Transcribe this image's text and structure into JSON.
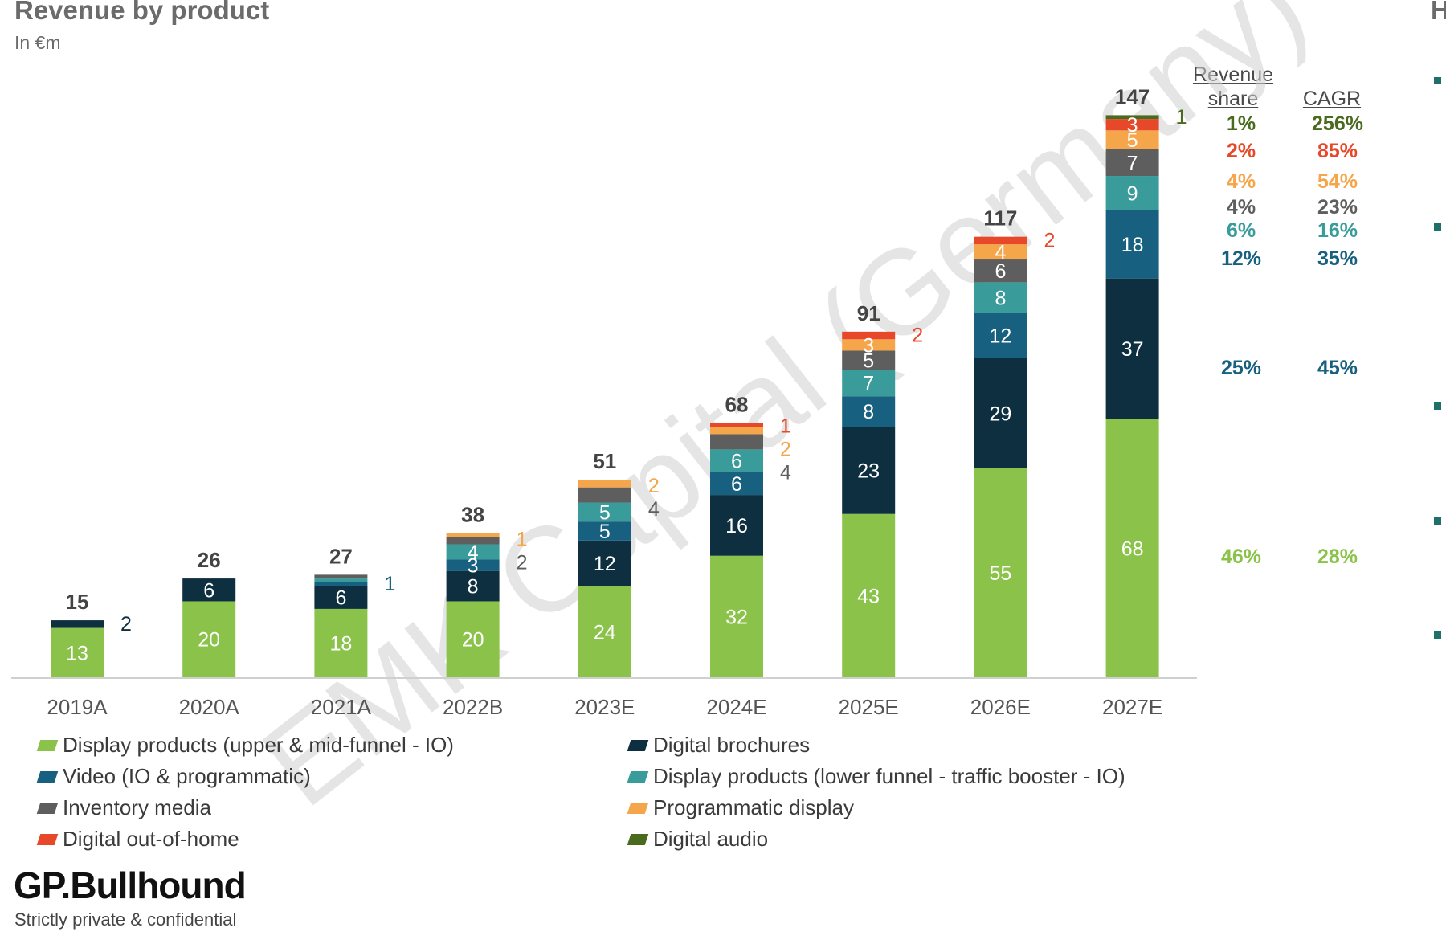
{
  "title": "Revenue by product",
  "subtitle": "In €m",
  "right_edge_text": "H",
  "columns": {
    "revenue_share": "Revenue share",
    "cagr": "CAGR"
  },
  "watermark": "EMK Capital (Germany)",
  "brand": "GP.Bullhound",
  "footer": "Strictly private & confidential",
  "chart_data": {
    "type": "bar",
    "stacked": true,
    "title": "Revenue by product",
    "ylabel": "In €m",
    "categories": [
      "2019A",
      "2020A",
      "2021A",
      "2022B",
      "2023E",
      "2024E",
      "2025E",
      "2026E",
      "2027E"
    ],
    "totals": [
      15,
      26,
      27,
      38,
      51,
      68,
      91,
      117,
      147
    ],
    "series": [
      {
        "name": "Display products (upper & mid-funnel - IO)",
        "color": "#8bc34a",
        "values": [
          13,
          20,
          18,
          20,
          24,
          32,
          43,
          55,
          68
        ],
        "share": "46%",
        "cagr": "28%"
      },
      {
        "name": "Digital brochures",
        "color": "#0d2f3f",
        "values": [
          2,
          6,
          6,
          8,
          12,
          16,
          23,
          29,
          37
        ],
        "share": "25%",
        "cagr": "45%"
      },
      {
        "name": "Video (IO & programmatic)",
        "color": "#17607f",
        "values": [
          0,
          0,
          1,
          3,
          5,
          6,
          8,
          12,
          18
        ],
        "share": "12%",
        "cagr": "35%"
      },
      {
        "name": "Display products (lower funnel - traffic booster - IO)",
        "color": "#3a9c9a",
        "values": [
          0,
          0,
          1,
          4,
          5,
          6,
          7,
          8,
          9
        ],
        "share": "6%",
        "cagr": "16%"
      },
      {
        "name": "Inventory media",
        "color": "#5e5e5e",
        "values": [
          0,
          0,
          1,
          2,
          4,
          4,
          5,
          6,
          7
        ],
        "share": "4%",
        "cagr": "23%"
      },
      {
        "name": "Programmatic display",
        "color": "#f5a54a",
        "values": [
          0,
          0,
          0,
          1,
          2,
          2,
          3,
          4,
          5
        ],
        "share": "4%",
        "cagr": "54%"
      },
      {
        "name": "Digital out-of-home",
        "color": "#e8482a",
        "values": [
          0,
          0,
          0,
          0,
          0,
          1,
          2,
          2,
          3
        ],
        "share": "2%",
        "cagr": "85%"
      },
      {
        "name": "Digital audio",
        "color": "#4a6a1e",
        "values": [
          0,
          0,
          0,
          0,
          0,
          0,
          0,
          0,
          1
        ],
        "share": "1%",
        "cagr": "256%"
      }
    ],
    "segment_labels": [
      [
        {
          "s": 0,
          "t": "13"
        }
      ],
      [
        {
          "s": 0,
          "t": "20"
        },
        {
          "s": 1,
          "t": "6"
        }
      ],
      [
        {
          "s": 0,
          "t": "18"
        },
        {
          "s": 1,
          "t": "6"
        }
      ],
      [
        {
          "s": 0,
          "t": "20"
        },
        {
          "s": 1,
          "t": "8"
        },
        {
          "s": 2,
          "t": "3"
        },
        {
          "s": 3,
          "t": "4"
        }
      ],
      [
        {
          "s": 0,
          "t": "24"
        },
        {
          "s": 1,
          "t": "12"
        },
        {
          "s": 2,
          "t": "5"
        },
        {
          "s": 3,
          "t": "5"
        }
      ],
      [
        {
          "s": 0,
          "t": "32"
        },
        {
          "s": 1,
          "t": "16"
        },
        {
          "s": 2,
          "t": "6"
        },
        {
          "s": 3,
          "t": "6"
        }
      ],
      [
        {
          "s": 0,
          "t": "43"
        },
        {
          "s": 1,
          "t": "23"
        },
        {
          "s": 2,
          "t": "8"
        },
        {
          "s": 3,
          "t": "7"
        },
        {
          "s": 4,
          "t": "5"
        },
        {
          "s": 5,
          "t": "3"
        }
      ],
      [
        {
          "s": 0,
          "t": "55"
        },
        {
          "s": 1,
          "t": "29"
        },
        {
          "s": 2,
          "t": "12"
        },
        {
          "s": 3,
          "t": "8"
        },
        {
          "s": 4,
          "t": "6"
        },
        {
          "s": 5,
          "t": "4"
        }
      ],
      [
        {
          "s": 0,
          "t": "68"
        },
        {
          "s": 1,
          "t": "37"
        },
        {
          "s": 2,
          "t": "18"
        },
        {
          "s": 3,
          "t": "9"
        },
        {
          "s": 4,
          "t": "7"
        },
        {
          "s": 5,
          "t": "5"
        },
        {
          "s": 6,
          "t": "3"
        }
      ]
    ],
    "side_labels": [
      [
        {
          "s": 1,
          "t": "2"
        }
      ],
      [],
      [
        {
          "s": 2,
          "t": "1"
        }
      ],
      [
        {
          "s": 5,
          "t": "1"
        },
        {
          "s": 4,
          "t": "2"
        }
      ],
      [
        {
          "s": 5,
          "t": "2"
        },
        {
          "s": 4,
          "t": "4"
        }
      ],
      [
        {
          "s": 6,
          "t": "1"
        },
        {
          "s": 5,
          "t": "2"
        },
        {
          "s": 4,
          "t": "4"
        }
      ],
      [
        {
          "s": 6,
          "t": "2"
        }
      ],
      [
        {
          "s": 6,
          "t": "2"
        }
      ],
      [
        {
          "s": 7,
          "t": "1"
        }
      ]
    ],
    "share_rows": [
      {
        "s": 7,
        "share": "1%",
        "cagr": "256%"
      },
      {
        "s": 6,
        "share": "2%",
        "cagr": "85%"
      },
      {
        "s": 5,
        "share": "4%",
        "cagr": "54%"
      },
      {
        "s": 4,
        "share": "4%",
        "cagr": "23%"
      },
      {
        "s": 3,
        "share": "6%",
        "cagr": "16%"
      },
      {
        "s": 2,
        "share": "12%",
        "cagr": "35%"
      },
      {
        "s": 1,
        "share": "25%",
        "cagr": "45%"
      },
      {
        "s": 0,
        "share": "46%",
        "cagr": "28%"
      }
    ],
    "legend_columns": [
      [
        "Display products (upper & mid-funnel - IO)",
        "Video (IO & programmatic)",
        "Inventory media",
        "Digital out-of-home"
      ],
      [
        "Digital brochures",
        "Display products (lower funnel - traffic booster - IO)",
        "Programmatic display",
        "Digital audio"
      ]
    ],
    "legend_placement": "bottom",
    "grid": false
  }
}
